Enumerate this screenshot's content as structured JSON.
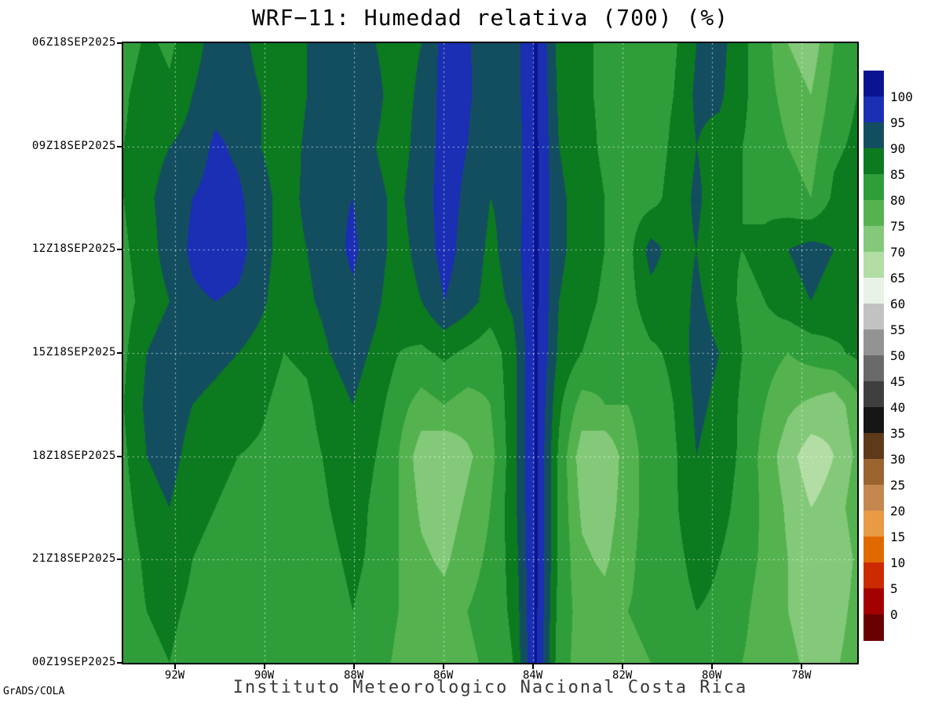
{
  "chart_data": {
    "type": "heatmap",
    "title": "WRF−11: Humedad relativa (700) (%)",
    "footer_left": "GrADS/COLA",
    "footer_center": "Instituto Meteorologico Nacional Costa Rica",
    "x_axis": {
      "range": [
        93.15,
        76.75
      ],
      "ticks": [
        {
          "value": 92,
          "label": "92W"
        },
        {
          "value": 90,
          "label": "90W"
        },
        {
          "value": 88,
          "label": "88W"
        },
        {
          "value": 86,
          "label": "86W"
        },
        {
          "value": 84,
          "label": "84W"
        },
        {
          "value": 82,
          "label": "82W"
        },
        {
          "value": 80,
          "label": "80W"
        },
        {
          "value": 78,
          "label": "78W"
        }
      ]
    },
    "y_axis": {
      "range": [
        0,
        18
      ],
      "ticks": [
        {
          "hour": 0,
          "label": "06Z18SEP2025"
        },
        {
          "hour": 3,
          "label": "09Z18SEP2025"
        },
        {
          "hour": 6,
          "label": "12Z18SEP2025"
        },
        {
          "hour": 9,
          "label": "15Z18SEP2025"
        },
        {
          "hour": 12,
          "label": "18Z18SEP2025"
        },
        {
          "hour": 15,
          "label": "21Z18SEP2025"
        },
        {
          "hour": 18,
          "label": "00Z19SEP2025"
        }
      ]
    },
    "colorbar": {
      "levels": [
        0,
        5,
        10,
        15,
        20,
        25,
        30,
        35,
        40,
        45,
        50,
        55,
        60,
        65,
        70,
        75,
        80,
        85,
        90,
        95,
        100
      ],
      "colors": [
        "#6b0000",
        "#a50000",
        "#cc2a00",
        "#e06900",
        "#e89a45",
        "#c4884e",
        "#9a6430",
        "#5c3a1a",
        "#161616",
        "#3f3f3f",
        "#696969",
        "#939393",
        "#c2c2c2",
        "#e9f2e6",
        "#b2dda4",
        "#84c979",
        "#55b34f",
        "#2f9e3a",
        "#0c7a1e",
        "#134e60",
        "#1a2fb4",
        "#0a1490"
      ]
    },
    "grid": {
      "lon_start": 93.15,
      "lon_end": 76.75,
      "hour_start": 0,
      "hour_end": 18,
      "values": [
        [
          82,
          86,
          84,
          88,
          92,
          92,
          88,
          86,
          90,
          92,
          93,
          90,
          88,
          90,
          97,
          96,
          90,
          92,
          101,
          88,
          86,
          84,
          83,
          82,
          84,
          90,
          92,
          86,
          82,
          75,
          72,
          80,
          84
        ],
        [
          84,
          88,
          86,
          90,
          93,
          93,
          90,
          86,
          90,
          93,
          94,
          91,
          88,
          91,
          97,
          96,
          91,
          92,
          101,
          89,
          86,
          84,
          83,
          82,
          85,
          91,
          91,
          86,
          82,
          78,
          75,
          82,
          85
        ],
        [
          85,
          88,
          90,
          92,
          96,
          94,
          90,
          87,
          91,
          93,
          92,
          90,
          88,
          92,
          97,
          95,
          90,
          91,
          101,
          90,
          87,
          84,
          82,
          82,
          86,
          90,
          88,
          85,
          83,
          80,
          78,
          84,
          86
        ],
        [
          85,
          89,
          92,
          95,
          97,
          96,
          92,
          88,
          91,
          94,
          95,
          91,
          89,
          93,
          97,
          94,
          90,
          91,
          101,
          91,
          88,
          85,
          82,
          83,
          87,
          91,
          87,
          85,
          84,
          82,
          80,
          86,
          88
        ],
        [
          84,
          88,
          92,
          96,
          98,
          97,
          92,
          88,
          90,
          93,
          96,
          92,
          88,
          92,
          97,
          93,
          89,
          92,
          101,
          91,
          88,
          85,
          83,
          92,
          88,
          90,
          86,
          85,
          86,
          90,
          92,
          90,
          87
        ],
        [
          83,
          87,
          90,
          94,
          95,
          94,
          91,
          87,
          89,
          92,
          94,
          91,
          87,
          90,
          95,
          92,
          88,
          91,
          101,
          90,
          87,
          84,
          83,
          88,
          87,
          91,
          88,
          84,
          85,
          88,
          90,
          88,
          85
        ],
        [
          84,
          90,
          93,
          92,
          91,
          90,
          88,
          85,
          86,
          90,
          92,
          89,
          85,
          84,
          86,
          84,
          82,
          88,
          101,
          89,
          85,
          82,
          81,
          84,
          86,
          92,
          90,
          85,
          82,
          80,
          82,
          84,
          86
        ],
        [
          85,
          91,
          93,
          90,
          89,
          88,
          86,
          83,
          84,
          88,
          90,
          87,
          82,
          78,
          80,
          78,
          80,
          88,
          101,
          86,
          78,
          80,
          80,
          82,
          85,
          91,
          89,
          84,
          80,
          76,
          74,
          72,
          78
        ],
        [
          84,
          90,
          92,
          88,
          86,
          85,
          84,
          82,
          83,
          86,
          88,
          85,
          80,
          72,
          70,
          74,
          78,
          88,
          101,
          84,
          72,
          70,
          78,
          82,
          84,
          90,
          88,
          84,
          78,
          72,
          67,
          70,
          76
        ],
        [
          83,
          88,
          90,
          86,
          85,
          84,
          83,
          82,
          82,
          85,
          87,
          84,
          80,
          74,
          72,
          76,
          80,
          88,
          101,
          84,
          74,
          72,
          78,
          82,
          84,
          89,
          87,
          83,
          79,
          74,
          70,
          72,
          78
        ],
        [
          82,
          86,
          88,
          85,
          84,
          83,
          82,
          81,
          82,
          84,
          86,
          84,
          80,
          76,
          74,
          78,
          81,
          87,
          101,
          84,
          76,
          74,
          79,
          82,
          83,
          87,
          85,
          82,
          79,
          75,
          72,
          70,
          76
        ],
        [
          82,
          85,
          86,
          84,
          83,
          82,
          82,
          81,
          81,
          83,
          85,
          83,
          80,
          78,
          77,
          80,
          82,
          86,
          101,
          83,
          78,
          77,
          80,
          81,
          82,
          85,
          84,
          81,
          78,
          75,
          73,
          72,
          77
        ],
        [
          81,
          84,
          85,
          83,
          82,
          82,
          81,
          80,
          80,
          82,
          84,
          82,
          79,
          77,
          76,
          79,
          81,
          85,
          101,
          82,
          78,
          76,
          79,
          80,
          81,
          84,
          83,
          80,
          78,
          76,
          74,
          74,
          78
        ]
      ]
    }
  }
}
